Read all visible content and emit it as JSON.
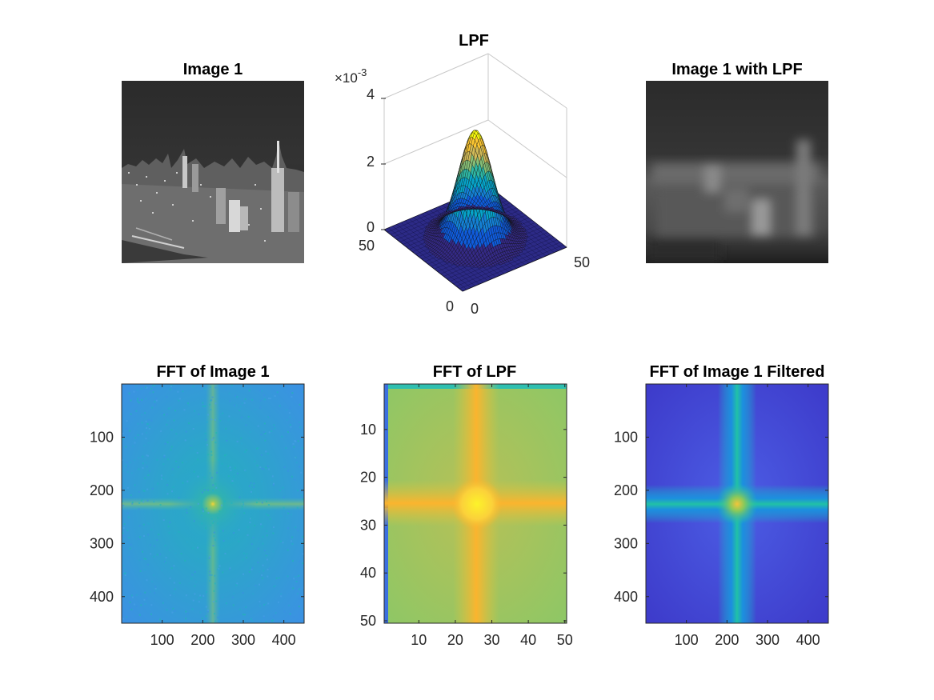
{
  "figure": {
    "panels": [
      {
        "id": "image1",
        "title": "Image 1"
      },
      {
        "id": "lpf",
        "title": "LPF"
      },
      {
        "id": "image1_lpf",
        "title": "Image 1 with LPF"
      },
      {
        "id": "fft_image1",
        "title": "FFT of Image 1"
      },
      {
        "id": "fft_lpf",
        "title": "FFT of LPF"
      },
      {
        "id": "fft_filtered",
        "title": "FFT of Image 1 Filtered"
      }
    ]
  },
  "chart_data": [
    {
      "type": "image",
      "title": "Image 1",
      "colormap": "gray",
      "axes_visible": false
    },
    {
      "type": "surface",
      "title": "LPF",
      "colormap": "parula",
      "x_ticks": [
        "0",
        "50"
      ],
      "y_ticks": [
        "0",
        "50"
      ],
      "z_ticks": [
        "0",
        "2",
        "4"
      ],
      "z_exponent_label": "×10",
      "z_exponent_value": "-3",
      "xlim": [
        0,
        50
      ],
      "ylim": [
        0,
        50
      ],
      "zlim": [
        0,
        0.004
      ],
      "peak": 0.0033,
      "center": [
        25,
        25
      ],
      "sigma": 6.5,
      "grid": false
    },
    {
      "type": "image",
      "title": "Image 1 with LPF",
      "colormap": "gray",
      "axes_visible": false
    },
    {
      "type": "heatmap",
      "title": "FFT of Image 1",
      "colormap": "parula",
      "x_ticks": [
        "100",
        "200",
        "300",
        "400"
      ],
      "y_ticks": [
        "100",
        "200",
        "300",
        "400"
      ],
      "xlim": [
        0,
        450
      ],
      "ylim": [
        0,
        450
      ],
      "center": [
        225,
        225
      ]
    },
    {
      "type": "heatmap",
      "title": "FFT of LPF",
      "colormap": "parula",
      "x_ticks": [
        "10",
        "20",
        "30",
        "40",
        "50"
      ],
      "y_ticks": [
        "10",
        "20",
        "30",
        "40",
        "50"
      ],
      "xlim": [
        0.5,
        50.5
      ],
      "ylim": [
        0.5,
        50.5
      ],
      "center": [
        26,
        26
      ]
    },
    {
      "type": "heatmap",
      "title": "FFT of Image 1 Filtered",
      "colormap": "parula",
      "x_ticks": [
        "100",
        "200",
        "300",
        "400"
      ],
      "y_ticks": [
        "100",
        "200",
        "300",
        "400"
      ],
      "xlim": [
        0,
        450
      ],
      "ylim": [
        0,
        450
      ],
      "center": [
        225,
        225
      ]
    }
  ]
}
